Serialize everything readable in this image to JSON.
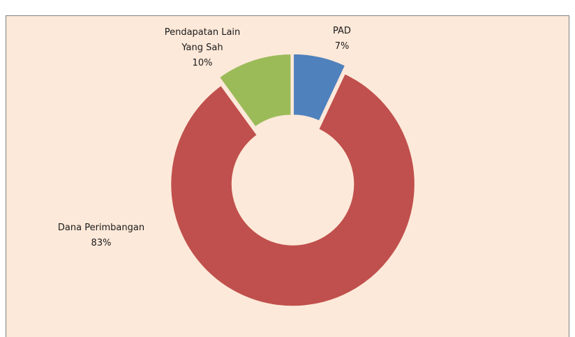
{
  "chart_data": {
    "type": "donut",
    "categories": [
      "PAD",
      "Dana Perimbangan",
      "Pendapatan Lain Yang Sah"
    ],
    "values": [
      7,
      83,
      10
    ],
    "value_labels": [
      "7%",
      "83%",
      "10%"
    ],
    "colors": [
      "#4f81bd",
      "#c0504d",
      "#9bbb59"
    ]
  }
}
